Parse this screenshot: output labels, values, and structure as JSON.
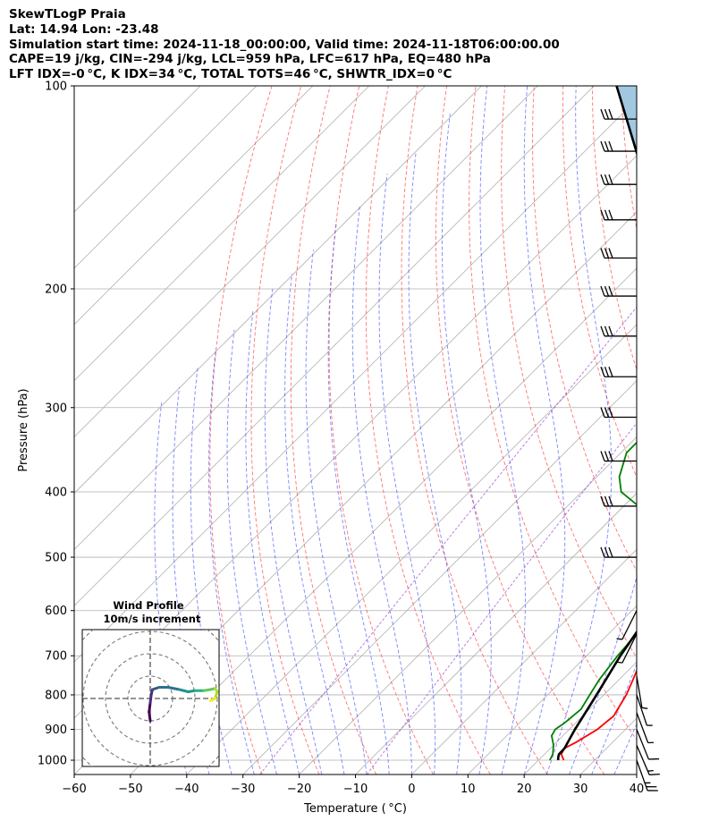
{
  "header": {
    "title": "SkewTLogP Praia",
    "location": "Lat: 14.94    Lon: -23.48",
    "times": "Simulation start time: 2024-11-18_00:00:00, Valid time: 2024-11-18T06:00:00.00",
    "indices1": "CAPE=19 j/kg, CIN=-294 j/kg, LCL=959 hPa, LFC=617 hPa, EQ=480 hPa",
    "indices2": "LFT IDX=-0 °C, K IDX=34 °C, TOTAL TOTS=46 °C, SHWTR_IDX=0 °C"
  },
  "chart_data": {
    "type": "line",
    "subtype": "skew-t log-p",
    "xlabel": "Temperature ( °C)",
    "ylabel": "Pressure (hPa)",
    "xlim": [
      -60,
      40
    ],
    "ylim": [
      1050,
      100
    ],
    "yscale": "log",
    "grid": true,
    "x_ticks": [
      -60,
      -50,
      -40,
      -30,
      -20,
      -10,
      0,
      10,
      20,
      30,
      40
    ],
    "y_ticks": [
      1000,
      900,
      800,
      700,
      600,
      500,
      400,
      300,
      200,
      100
    ],
    "series": [
      {
        "color": "#ff0000",
        "points": [
          [
            1000,
            24.5
          ],
          [
            980,
            23
          ],
          [
            960,
            22.5
          ],
          [
            940,
            23.5
          ],
          [
            900,
            25
          ],
          [
            860,
            25.5
          ],
          [
            800,
            24
          ],
          [
            760,
            22.5
          ],
          [
            700,
            20
          ],
          [
            650,
            18.5
          ],
          [
            600,
            17
          ],
          [
            560,
            16
          ],
          [
            500,
            14
          ],
          [
            460,
            12.8
          ],
          [
            420,
            11.5
          ],
          [
            400,
            10
          ],
          [
            380,
            8.5
          ],
          [
            350,
            6
          ],
          [
            300,
            2.5
          ],
          [
            280,
            1.5
          ],
          [
            260,
            0.5
          ],
          [
            240,
            -2
          ],
          [
            220,
            -5
          ],
          [
            200,
            -7.5
          ],
          [
            180,
            -10
          ],
          [
            165,
            -11
          ],
          [
            150,
            -11.5
          ],
          [
            135,
            -11.5
          ],
          [
            120,
            -10
          ],
          [
            110,
            -7
          ],
          [
            100,
            -5
          ]
        ]
      },
      {
        "color": "#008000",
        "points": [
          [
            1000,
            22
          ],
          [
            980,
            21.5
          ],
          [
            950,
            20
          ],
          [
            920,
            18
          ],
          [
            900,
            17.5
          ],
          [
            880,
            18
          ],
          [
            840,
            18.5
          ],
          [
            800,
            17.5
          ],
          [
            760,
            16.5
          ],
          [
            700,
            15.5
          ],
          [
            650,
            15
          ],
          [
            600,
            14.5
          ],
          [
            560,
            13.5
          ],
          [
            530,
            12
          ],
          [
            500,
            10
          ],
          [
            470,
            6
          ],
          [
            440,
            -2
          ],
          [
            400,
            -13
          ],
          [
            380,
            -16
          ],
          [
            350,
            -19
          ],
          [
            330,
            -19
          ],
          [
            310,
            -9
          ],
          [
            295,
            -7
          ],
          [
            275,
            -10
          ],
          [
            255,
            -25
          ],
          [
            240,
            -24
          ],
          [
            220,
            -19
          ],
          [
            200,
            -20
          ],
          [
            185,
            -25
          ],
          [
            178,
            -28
          ],
          [
            165,
            -21
          ],
          [
            150,
            -20
          ],
          [
            135,
            -19
          ],
          [
            120,
            -17.5
          ],
          [
            110,
            -14
          ],
          [
            100,
            -10
          ]
        ]
      },
      {
        "color": "#000000",
        "name": "parcel",
        "points": [
          [
            1000,
            23.5
          ],
          [
            990,
            23
          ],
          [
            980,
            22.6
          ],
          [
            960,
            22.5
          ],
          [
            900,
            21
          ],
          [
            800,
            18.7
          ],
          [
            700,
            16
          ],
          [
            600,
            13.5
          ],
          [
            500,
            9.5
          ],
          [
            450,
            6.2
          ],
          [
            400,
            1.5
          ],
          [
            350,
            -5
          ],
          [
            300,
            -14
          ],
          [
            250,
            -25
          ],
          [
            200,
            -39
          ],
          [
            150,
            -58.5
          ],
          [
            100,
            -86
          ]
        ]
      }
    ],
    "cape_shading": {
      "color": "#a2c7e1",
      "between": [
        "parcel",
        "temperature"
      ],
      "pressure_range": [
        480,
        100
      ]
    },
    "wind_barbs": [
      {
        "p": 1000,
        "u": -10,
        "v": 28
      },
      {
        "p": 950,
        "u": -6,
        "v": 14
      },
      {
        "p": 900,
        "u": -4,
        "v": 10
      },
      {
        "p": 850,
        "u": -3,
        "v": 8
      },
      {
        "p": 800,
        "u": -2,
        "v": 6
      },
      {
        "p": 750,
        "u": -1,
        "v": 6
      },
      {
        "p": 650,
        "u": 4,
        "v": 8
      },
      {
        "p": 600,
        "u": 4,
        "v": 8
      },
      {
        "p": 500,
        "u": 30,
        "v": 0
      },
      {
        "p": 420,
        "u": 30,
        "v": 0
      },
      {
        "p": 360,
        "u": 30,
        "v": 0
      },
      {
        "p": 310,
        "u": 30,
        "v": 0
      },
      {
        "p": 270,
        "u": 30,
        "v": 0
      },
      {
        "p": 235,
        "u": 30,
        "v": 0
      },
      {
        "p": 205,
        "u": 30,
        "v": 0
      },
      {
        "p": 180,
        "u": 30,
        "v": 0
      },
      {
        "p": 158,
        "u": 30,
        "v": 0
      },
      {
        "p": 140,
        "u": 30,
        "v": 0
      },
      {
        "p": 125,
        "u": 30,
        "v": 0
      },
      {
        "p": 112,
        "u": 30,
        "v": 0
      }
    ],
    "hodograph": {
      "title": "Wind Profile",
      "subtitle": "10m/s increment",
      "ring_spacing": 10,
      "path": [
        [
          0,
          -10
        ],
        [
          -0.5,
          -6
        ],
        [
          0,
          -2
        ],
        [
          0.5,
          2
        ],
        [
          1,
          4
        ],
        [
          4,
          5
        ],
        [
          8,
          5
        ],
        [
          13,
          4
        ],
        [
          17,
          3
        ],
        [
          20,
          3.5
        ],
        [
          24,
          3.5
        ],
        [
          27,
          4
        ],
        [
          29,
          4.5
        ],
        [
          30,
          3
        ],
        [
          29,
          0
        ],
        [
          27,
          -1
        ]
      ]
    }
  }
}
